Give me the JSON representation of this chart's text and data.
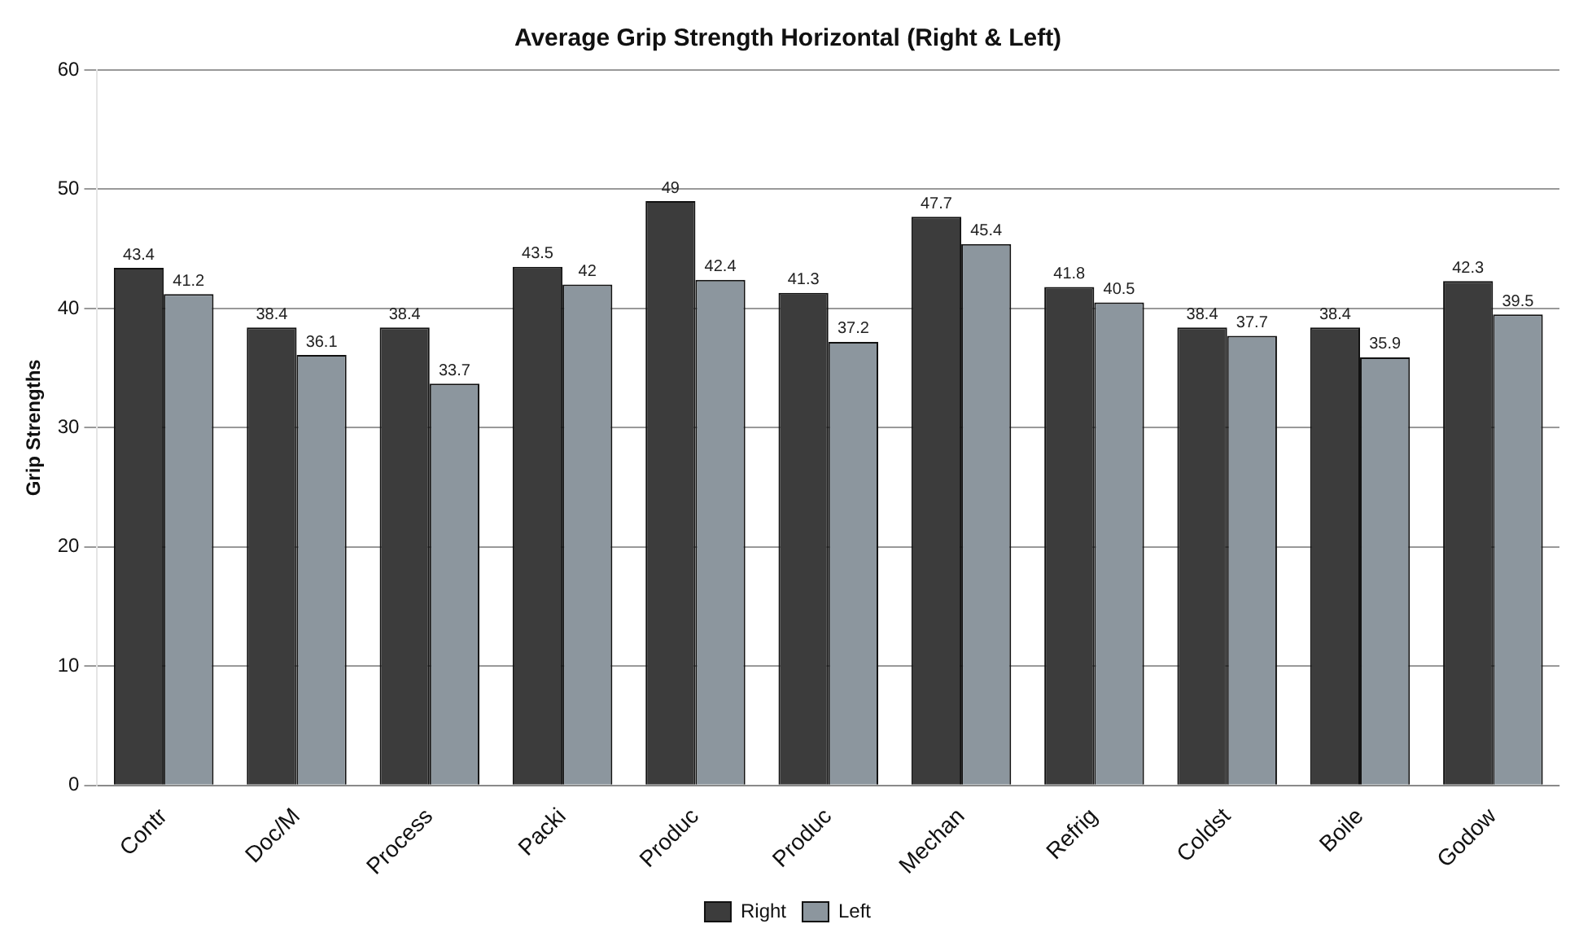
{
  "chart_data": {
    "type": "bar",
    "title": "Average Grip Strength Horizontal (Right & Left)",
    "ylabel": "Grip Strengths",
    "categories": [
      "Contr",
      "Doc/M",
      "Process",
      "Packi",
      "Produc",
      "Produc",
      "Mechan",
      "Refrig",
      "Coldst",
      "Boile",
      "Godow"
    ],
    "series": [
      {
        "name": "Right",
        "color": "#3c3c3c",
        "values": [
          43.4,
          38.4,
          38.4,
          43.5,
          49,
          41.3,
          47.7,
          41.8,
          38.4,
          38.4,
          42.3
        ]
      },
      {
        "name": "Left",
        "color": "#8c969e",
        "values": [
          41.2,
          36.1,
          33.7,
          42,
          42.4,
          37.2,
          45.4,
          40.5,
          37.7,
          35.9,
          39.5
        ]
      }
    ],
    "ylim": [
      0,
      60
    ],
    "yticks": [
      0,
      10,
      20,
      30,
      40,
      50,
      60
    ],
    "grid": "y",
    "legend": "bottom",
    "data_labels": true
  }
}
